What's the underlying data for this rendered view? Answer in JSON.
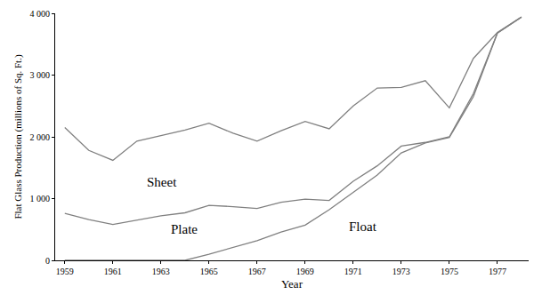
{
  "chart_data": {
    "type": "line",
    "stacked": true,
    "x_label": "Year",
    "y_label": "Flat Glass Production (millions of Sq. Ft.)",
    "x": [
      1959,
      1960,
      1961,
      1962,
      1963,
      1964,
      1965,
      1966,
      1967,
      1968,
      1969,
      1970,
      1971,
      1972,
      1973,
      1974,
      1975,
      1976,
      1977,
      1978
    ],
    "series": [
      {
        "name": "Float",
        "color": "#808080",
        "line_style": "solid",
        "values": [
          null,
          null,
          null,
          null,
          null,
          0,
          100,
          210,
          320,
          460,
          570,
          820,
          1100,
          1380,
          1740,
          1900,
          1990,
          2650,
          3680,
          3940
        ]
      },
      {
        "name": "Plate",
        "color": "#808080",
        "line_style": "solid",
        "values": [
          760,
          660,
          580,
          650,
          720,
          770,
          790,
          660,
          520,
          480,
          420,
          150,
          180,
          150,
          110,
          10,
          10,
          50,
          0,
          0
        ]
      },
      {
        "name": "Sheet",
        "color": "#808080",
        "line_style": "solid",
        "values": [
          1390,
          1120,
          1040,
          1280,
          1300,
          1340,
          1330,
          1190,
          1090,
          1160,
          1260,
          1160,
          1220,
          1260,
          950,
          1000,
          470,
          570,
          10,
          0
        ]
      }
    ],
    "xlim": [
      1958.6,
      1978.3
    ],
    "xticks": [
      1959,
      1961,
      1963,
      1965,
      1967,
      1969,
      1971,
      1973,
      1975,
      1977
    ],
    "ylim": [
      0,
      4000
    ],
    "yticks": [
      0,
      {
        "value": 1000,
        "label": "1 000"
      },
      {
        "value": 2000,
        "label": "2 000"
      },
      {
        "value": 3000,
        "label": "3 000"
      },
      {
        "value": 4000,
        "label": "4 000"
      }
    ],
    "grid": false,
    "legend": "none"
  }
}
